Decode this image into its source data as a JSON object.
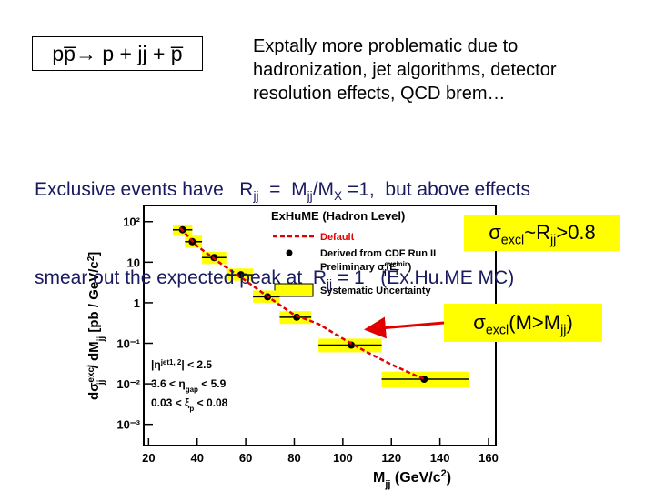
{
  "slide": {
    "title": "pp̅→ p + jj + p̅",
    "note_lines": [
      "Exptally more problematic due to",
      "hadronization, jet algorithms, detector",
      "resolution effects, QCD brem…"
    ],
    "line1": [
      "Exclusive events have   R",
      "jj",
      "  =  M",
      "jj",
      "/M",
      "X",
      " =1,  but above effects"
    ],
    "line2": [
      "smear out the expected peak at  R",
      "jj",
      " = 1   (Ex.Hu.ME MC)"
    ],
    "box1": [
      "σ",
      "excl",
      "~R",
      "jj",
      ">0.8"
    ],
    "box2": [
      "σ",
      "excl",
      "(M>M",
      "jj",
      ")"
    ]
  },
  "chart_data": {
    "type": "scatter",
    "legend_title": "ExHuME (Hadron Level)",
    "x_label": [
      "M",
      "jj",
      " (GeV/c",
      "2",
      ")"
    ],
    "y_label": [
      "dσ",
      "excl",
      "jj",
      " / dM",
      "jj",
      "   [pb / GeV/c",
      "2",
      "]"
    ],
    "note2": [
      "Preliminary σ",
      "excl",
      "jj",
      "(E",
      "min",
      "T",
      ")"
    ],
    "syst_name": "Systematic Uncertainty",
    "cuts": [
      [
        "|η",
        "jet1, 2",
        "| < 2.5"
      ],
      [
        "3.6 < η",
        "gap",
        " < 5.9"
      ],
      [
        "0.03 < ξ",
        "p",
        " < 0.08"
      ]
    ],
    "xlim": [
      18,
      163
    ],
    "ylim": [
      0.0003,
      250
    ],
    "log_y": true,
    "xticks": [
      20,
      40,
      60,
      80,
      100,
      120,
      140,
      160
    ],
    "yticks": [
      {
        "value": 0.001,
        "label": "10⁻³"
      },
      {
        "value": 0.01,
        "label": "10⁻²"
      },
      {
        "value": 0.1,
        "label": "10⁻¹"
      },
      1,
      10,
      {
        "value": 100,
        "label": "10²"
      }
    ],
    "series": [
      {
        "name": "Default",
        "color": "#e00000",
        "type": "line",
        "x": [
          33,
          40,
          50,
          60,
          70,
          80,
          90,
          100,
          110,
          120,
          130,
          134
        ],
        "values": [
          70,
          25,
          9,
          3.5,
          1.3,
          0.5,
          0.3,
          0.13,
          0.06,
          0.03,
          0.016,
          0.013
        ]
      },
      {
        "name": "Derived from CDF Run II",
        "color": "#000000",
        "syst_color": "#ffff00",
        "type": "points",
        "x": [
          34,
          38,
          47,
          58,
          69,
          81,
          103.5,
          133.5
        ],
        "values": [
          63,
          32,
          13,
          4.9,
          1.4,
          0.44,
          0.09,
          0.013
        ],
        "x_low": [
          30,
          35,
          42,
          52,
          63,
          74,
          90,
          116
        ],
        "x_high": [
          38,
          42,
          52,
          63,
          74,
          87,
          116,
          152
        ],
        "syst_low": [
          45,
          23,
          9,
          3.5,
          1,
          0.3,
          0.06,
          0.008
        ],
        "syst_high": [
          85,
          45,
          18,
          7,
          2,
          0.62,
          0.13,
          0.02
        ]
      }
    ]
  }
}
